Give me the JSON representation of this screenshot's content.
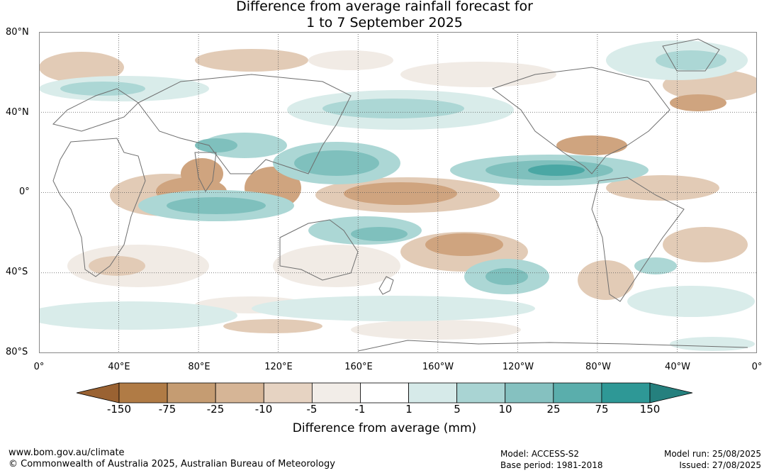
{
  "title": {
    "line1": "Difference from average rainfall forecast for",
    "line2": "1 to 7 September 2025"
  },
  "lat_labels": [
    "80°N",
    "40°N",
    "0°",
    "40°S",
    "80°S"
  ],
  "lon_labels": [
    "0°",
    "40°E",
    "80°E",
    "120°E",
    "160°E",
    "160°W",
    "120°W",
    "80°W",
    "40°W",
    "0°"
  ],
  "colorbar": {
    "ticks": [
      "-150",
      "-75",
      "-25",
      "-10",
      "-5",
      "-1",
      "1",
      "5",
      "10",
      "25",
      "75",
      "150"
    ],
    "colors": [
      "#9a6232",
      "#b07b45",
      "#c59c72",
      "#d6b596",
      "#e6d3c2",
      "#f2ede8",
      "#ffffff",
      "#d6eae9",
      "#a9d4d3",
      "#85c1c0",
      "#5aaeac",
      "#2e9896",
      "#25807e"
    ],
    "title": "Difference from average (mm)"
  },
  "colors": {
    "dry_strong": "#b88556",
    "dry_medium": "#cfa47f",
    "dry_light": "#e2cbb6",
    "dry_faint": "#f1ebe5",
    "wet_faint": "#d9ecea",
    "wet_light": "#acd7d5",
    "wet_medium": "#7fc0bd",
    "wet_strong": "#4aa7a4",
    "coast": "#6e6e6e",
    "grid": "#555555"
  },
  "footer": {
    "url": "www.bom.gov.au/climate",
    "copyright": "© Commonwealth of Australia 2025, Australian Bureau of Meteorology",
    "model": "Model: ACCESS-S2",
    "base_period": "Base period: 1981-2018",
    "model_run": "Model run: 25/08/2025",
    "issued": "Issued: 27/08/2025"
  }
}
